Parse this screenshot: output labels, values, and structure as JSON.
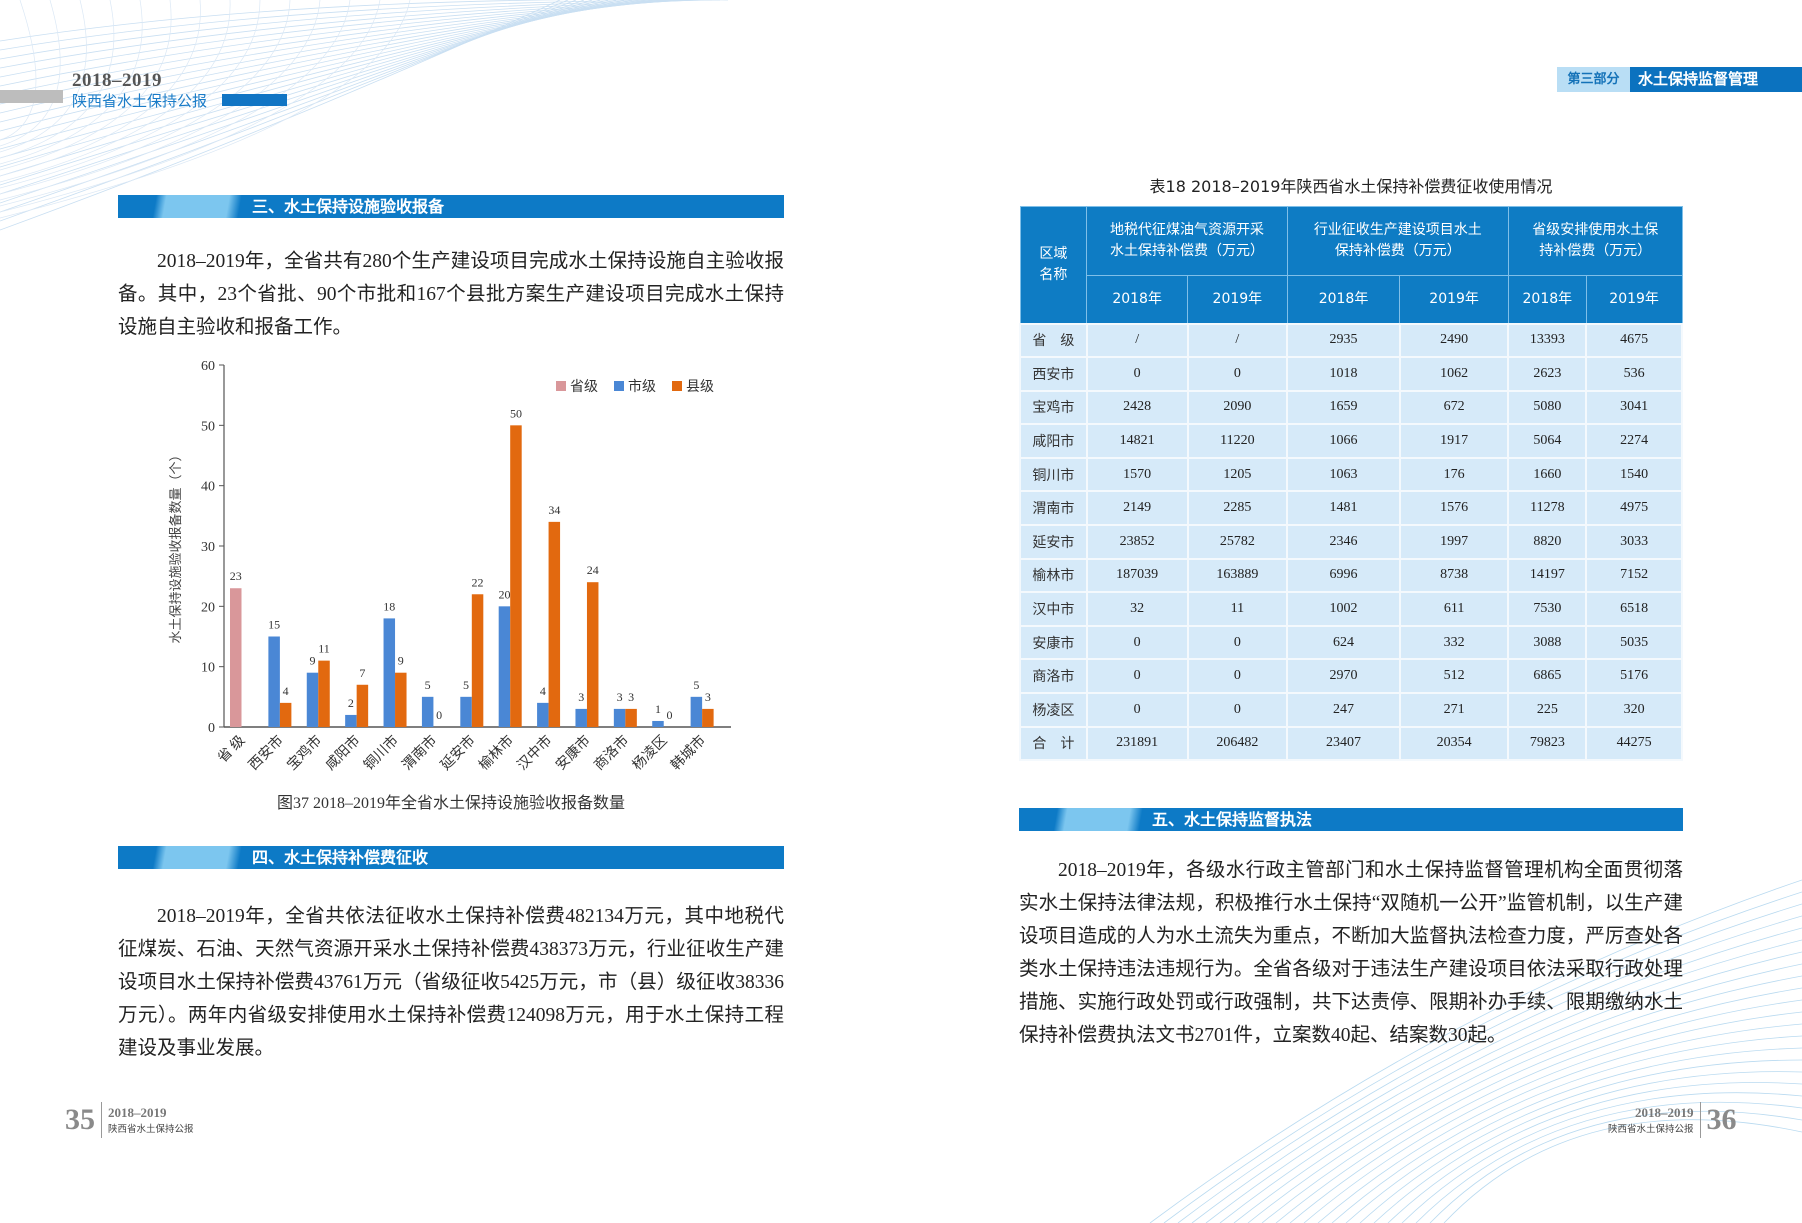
{
  "header_left": {
    "year": "2018–2019",
    "title": "陕西省水土保持公报"
  },
  "header_right": {
    "part": "第三部分",
    "section": "水土保持监督管理"
  },
  "left_page": {
    "section3_title": "三、水土保持设施验收报备",
    "section3_text": "2018–2019年，全省共有280个生产建设项目完成水土保持设施自主验收报备。其中，23个省批、90个市批和167个县批方案生产建设项目完成水土保持设施自主验收和报备工作。",
    "figure_caption": "图37 2018–2019年全省水土保持设施验收报备数量",
    "section4_title": "四、水土保持补偿费征收",
    "section4_text": "2018–2019年，全省共依法征收水土保持补偿费482134万元，其中地税代征煤炭、石油、天然气资源开采水土保持补偿费438373万元，行业征收生产建设项目水土保持补偿费43761万元（省级征收5425万元，市（县）级征收38336万元）。两年内省级安排使用水土保持补偿费124098万元，用于水土保持工程建设及事业发展。",
    "footer": {
      "page": "35",
      "year": "2018–2019",
      "title": "陕西省水土保持公报"
    }
  },
  "chart_data": {
    "type": "bar",
    "title": "图37 2018–2019年全省水土保持设施验收报备数量",
    "xlabel": "",
    "ylabel": "水土保持设施验收报备数量（个）",
    "ylim": [
      0,
      60
    ],
    "yticks": [
      0,
      10,
      20,
      30,
      40,
      50,
      60
    ],
    "grid": false,
    "legend": "top-right",
    "categories": [
      "省 级",
      "西安市",
      "宝鸡市",
      "咸阳市",
      "铜川市",
      "渭南市",
      "延安市",
      "榆林市",
      "汉中市",
      "安康市",
      "商洛市",
      "杨凌区",
      "韩城市"
    ],
    "series": [
      {
        "name": "省级",
        "color": "#d9979a",
        "values": [
          23,
          null,
          null,
          null,
          null,
          null,
          null,
          null,
          null,
          null,
          null,
          null,
          null
        ]
      },
      {
        "name": "市级",
        "color": "#4a87d5",
        "values": [
          null,
          15,
          9,
          2,
          18,
          5,
          5,
          20,
          4,
          3,
          3,
          1,
          5
        ]
      },
      {
        "name": "县级",
        "color": "#e2690f",
        "values": [
          null,
          4,
          11,
          7,
          9,
          0,
          22,
          50,
          34,
          24,
          3,
          0,
          3
        ]
      }
    ]
  },
  "right_page": {
    "table_title": "表18 2018–2019年陕西省水土保持补偿费征收使用情况",
    "table": {
      "region_header": [
        "区域",
        "名称"
      ],
      "group_headers": [
        [
          "地税代征煤油气资源开采",
          "水土保持补偿费（万元）"
        ],
        [
          "行业征收生产建设项目水土",
          "保持补偿费（万元）"
        ],
        [
          "省级安排使用水土保",
          "持补偿费（万元）"
        ]
      ],
      "year_headers": [
        "2018年",
        "2019年",
        "2018年",
        "2019年",
        "2018年",
        "2019年"
      ],
      "rows": [
        [
          "省　级",
          "/",
          "/",
          "2935",
          "2490",
          "13393",
          "4675"
        ],
        [
          "西安市",
          "0",
          "0",
          "1018",
          "1062",
          "2623",
          "536"
        ],
        [
          "宝鸡市",
          "2428",
          "2090",
          "1659",
          "672",
          "5080",
          "3041"
        ],
        [
          "咸阳市",
          "14821",
          "11220",
          "1066",
          "1917",
          "5064",
          "2274"
        ],
        [
          "铜川市",
          "1570",
          "1205",
          "1063",
          "176",
          "1660",
          "1540"
        ],
        [
          "渭南市",
          "2149",
          "2285",
          "1481",
          "1576",
          "11278",
          "4975"
        ],
        [
          "延安市",
          "23852",
          "25782",
          "2346",
          "1997",
          "8820",
          "3033"
        ],
        [
          "榆林市",
          "187039",
          "163889",
          "6996",
          "8738",
          "14197",
          "7152"
        ],
        [
          "汉中市",
          "32",
          "11",
          "1002",
          "611",
          "7530",
          "6518"
        ],
        [
          "安康市",
          "0",
          "0",
          "624",
          "332",
          "3088",
          "5035"
        ],
        [
          "商洛市",
          "0",
          "0",
          "2970",
          "512",
          "6865",
          "5176"
        ],
        [
          "杨凌区",
          "0",
          "0",
          "247",
          "271",
          "225",
          "320"
        ],
        [
          "合　计",
          "231891",
          "206482",
          "23407",
          "20354",
          "79823",
          "44275"
        ]
      ]
    },
    "section5_title": "五、水土保持监督执法",
    "section5_text": "2018–2019年，各级水行政主管部门和水土保持监督管理机构全面贯彻落实水土保持法律法规，积极推行水土保持“双随机一公开”监管机制，以生产建设项目造成的人为水土流失为重点，不断加大监督执法检查力度，严厉查处各类水土保持违法违规行为。全省各级对于违法生产建设项目依法采取行政处理措施、实施行政处罚或行政强制，共下达责停、限期补办手续、限期缴纳水土保持补偿费执法文书2701件，立案数40起、结案数30起。",
    "footer": {
      "page": "36",
      "year": "2018–2019",
      "title": "陕西省水土保持公报"
    }
  }
}
